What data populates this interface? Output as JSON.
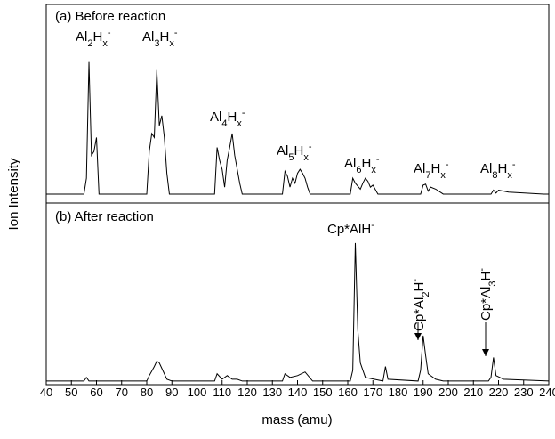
{
  "chart_data": [
    {
      "type": "line",
      "panel_label": "(a) Before reaction",
      "ylabel": "Ion Intensity",
      "xlim": [
        40,
        240
      ],
      "ylim": [
        0,
        100
      ],
      "color": "#000000",
      "series": [
        {
          "x": [
            40,
            55,
            56,
            57,
            58,
            59,
            60,
            61,
            80,
            81,
            82,
            83,
            84,
            85,
            86,
            87,
            88,
            89,
            107,
            108,
            109,
            110,
            111,
            112,
            113,
            114,
            115,
            116,
            117,
            118,
            134,
            135,
            136,
            137,
            138,
            139,
            140,
            141,
            142,
            143,
            144,
            145,
            161,
            162,
            163,
            165,
            166,
            167,
            168,
            169,
            170,
            172,
            189,
            190,
            191,
            192,
            193,
            195,
            198,
            217,
            218,
            219,
            220,
            224,
            238,
            240
          ],
          "values": [
            4.5,
            4.5,
            12.5,
            71,
            24,
            26,
            33,
            4.5,
            4.5,
            26,
            35,
            33,
            67,
            39,
            44,
            33,
            15,
            4.5,
            4.5,
            28,
            21.5,
            17,
            8,
            21.5,
            28,
            35,
            24,
            17,
            10,
            4.5,
            4.5,
            16,
            13.5,
            8,
            12.5,
            10,
            15,
            17,
            15,
            12.5,
            8,
            4.5,
            4.5,
            12.5,
            10,
            7,
            10,
            12.5,
            11,
            8,
            9,
            4.5,
            4.5,
            9,
            9.5,
            6,
            8,
            7,
            4.5,
            4.5,
            6.5,
            5,
            6.5,
            5.5,
            4.5,
            4.5
          ]
        }
      ],
      "annotations": [
        [
          {
            "text": "Al",
            "pos": "base"
          },
          {
            "text": "2",
            "pos": "sub"
          },
          {
            "text": "H",
            "pos": "base"
          },
          {
            "text": "x",
            "pos": "sub"
          },
          {
            "text": "-",
            "pos": "sup"
          }
        ],
        [
          {
            "text": "Al",
            "pos": "base"
          },
          {
            "text": "3",
            "pos": "sub"
          },
          {
            "text": "H",
            "pos": "base"
          },
          {
            "text": "x",
            "pos": "sub"
          },
          {
            "text": "-",
            "pos": "sup"
          }
        ],
        [
          {
            "text": "Al",
            "pos": "base"
          },
          {
            "text": "4",
            "pos": "sub"
          },
          {
            "text": "H",
            "pos": "base"
          },
          {
            "text": "x",
            "pos": "sub"
          },
          {
            "text": "-",
            "pos": "sup"
          }
        ],
        [
          {
            "text": "Al",
            "pos": "base"
          },
          {
            "text": "5",
            "pos": "sub"
          },
          {
            "text": "H",
            "pos": "base"
          },
          {
            "text": "x",
            "pos": "sub"
          },
          {
            "text": "-",
            "pos": "sup"
          }
        ],
        [
          {
            "text": "Al",
            "pos": "base"
          },
          {
            "text": "6",
            "pos": "sub"
          },
          {
            "text": "H",
            "pos": "base"
          },
          {
            "text": "x",
            "pos": "sub"
          },
          {
            "text": "-",
            "pos": "sup"
          }
        ],
        [
          {
            "text": "Al",
            "pos": "base"
          },
          {
            "text": "7",
            "pos": "sub"
          },
          {
            "text": "H",
            "pos": "base"
          },
          {
            "text": "x",
            "pos": "sub"
          },
          {
            "text": "-",
            "pos": "sup"
          }
        ],
        [
          {
            "text": "Al",
            "pos": "base"
          },
          {
            "text": "8",
            "pos": "sub"
          },
          {
            "text": "H",
            "pos": "base"
          },
          {
            "text": "x",
            "pos": "sub"
          },
          {
            "text": "-",
            "pos": "sup"
          }
        ]
      ]
    },
    {
      "type": "line",
      "panel_label": "(b) After reaction",
      "xlabel": "mass (amu)",
      "xlim": [
        40,
        240
      ],
      "ylim": [
        0,
        100
      ],
      "color": "#000000",
      "xticks": [
        40,
        50,
        60,
        70,
        80,
        90,
        100,
        110,
        120,
        130,
        140,
        150,
        160,
        170,
        180,
        190,
        200,
        210,
        220,
        230,
        240
      ],
      "series": [
        {
          "x": [
            40,
            55,
            56,
            57,
            60,
            80,
            81,
            83,
            84,
            85,
            86,
            88,
            90,
            107,
            108,
            110,
            112,
            114,
            116,
            118,
            134,
            135,
            137,
            140,
            143,
            146,
            161,
            162,
            163,
            164,
            165,
            167,
            174,
            175,
            176,
            188,
            189,
            190,
            191,
            192,
            195,
            198,
            216,
            217,
            218,
            219,
            222,
            240
          ],
          "values": [
            2,
            2,
            4,
            2,
            2,
            2,
            5,
            10,
            13,
            12,
            9,
            3,
            2,
            2,
            6,
            3,
            5,
            3,
            3,
            2,
            2,
            6,
            4,
            5,
            7,
            2,
            2,
            8,
            78,
            30,
            12,
            4,
            2,
            10,
            3,
            2,
            8,
            27,
            16,
            6,
            3,
            2,
            2,
            4,
            15,
            5,
            3,
            2
          ]
        }
      ],
      "annotations": [
        [
          {
            "text": "Cp*AlH",
            "pos": "base"
          },
          {
            "text": "-",
            "pos": "sup"
          }
        ],
        [
          {
            "text": "Cp*Al",
            "pos": "base"
          },
          {
            "text": "2",
            "pos": "sub"
          },
          {
            "text": "H",
            "pos": "base"
          },
          {
            "text": "-",
            "pos": "sup"
          }
        ],
        [
          {
            "text": "Cp*Al",
            "pos": "base"
          },
          {
            "text": "3",
            "pos": "sub"
          },
          {
            "text": "H",
            "pos": "base"
          },
          {
            "text": "-",
            "pos": "sup"
          }
        ]
      ]
    }
  ]
}
